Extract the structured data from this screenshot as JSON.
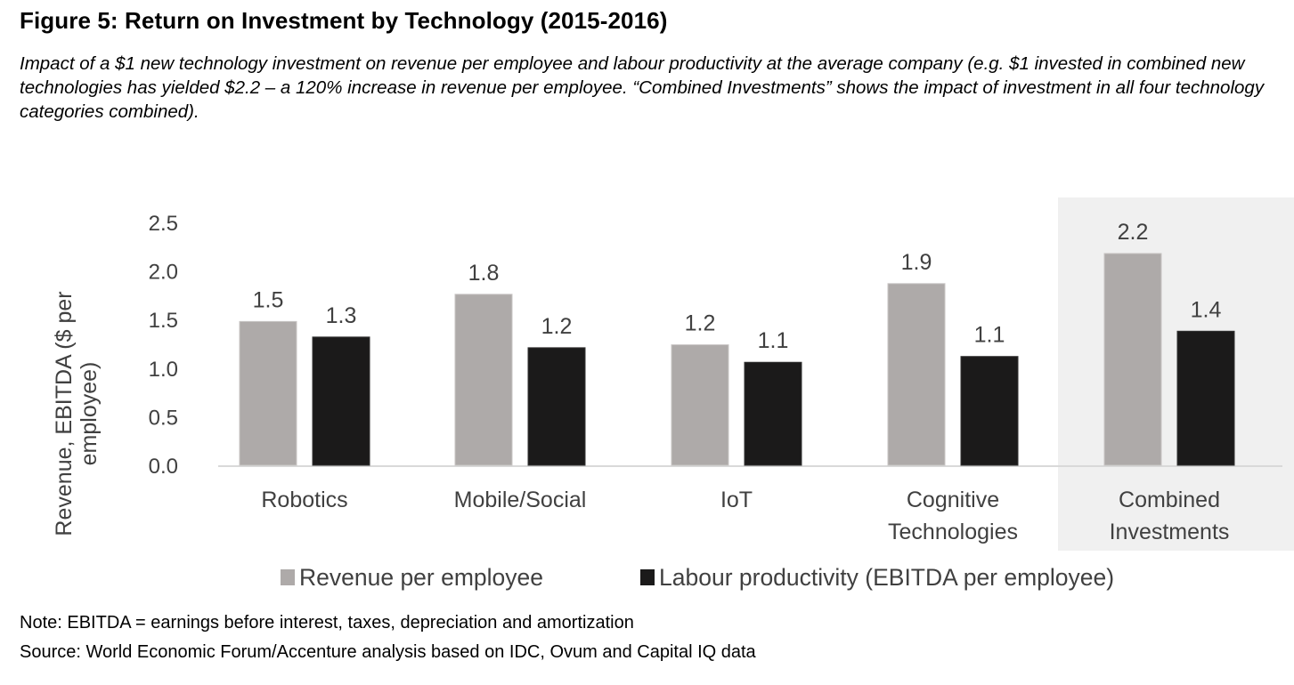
{
  "header": {
    "title": "Figure 5: Return on Investment by Technology (2015-2016)",
    "subtitle": "Impact of a $1 new technology investment on revenue per employee and labour productivity at the average company (e.g. $1 invested in combined new technologies has yielded $2.2 – a 120% increase in revenue per employee. “Combined Investments” shows the impact of investment in all four technology categories combined)."
  },
  "footer": {
    "note": "Note: EBITDA = earnings before interest, taxes, depreciation and amortization",
    "source": "Source: World Economic Forum/Accenture analysis based on IDC, Ovum and Capital IQ data"
  },
  "colors": {
    "revenue": "#aeaaa9",
    "labour": "#1b1a1a",
    "highlight_bg": "#f0f0f0",
    "axis_line": "#d9d9d9",
    "text": "#404040"
  },
  "chart_data": {
    "type": "bar",
    "title": "Figure 5: Return on Investment by Technology (2015-2016)",
    "xlabel": "",
    "ylabel": "Revenue, EBITDA ($ per employee)",
    "ylabel_lines": [
      "Revenue, EBITDA ($ per",
      "employee)"
    ],
    "ylim": [
      0,
      2.5
    ],
    "yticks": [
      0.0,
      0.5,
      1.0,
      1.5,
      2.0,
      2.5
    ],
    "ytick_labels": [
      "0.0",
      "0.5",
      "1.0",
      "1.5",
      "2.0",
      "2.5"
    ],
    "grid": false,
    "legend_position": "bottom",
    "categories": [
      "Robotics",
      "Mobile/Social",
      "IoT",
      "Cognitive Technologies",
      "Combined Investments"
    ],
    "category_label_lines": [
      [
        "Robotics"
      ],
      [
        "Mobile/Social"
      ],
      [
        "IoT"
      ],
      [
        "Cognitive",
        "Technologies"
      ],
      [
        "Combined",
        "Investments"
      ]
    ],
    "highlighted_category": "Combined Investments",
    "series": [
      {
        "name": "Revenue per employee",
        "color_key": "revenue",
        "values": [
          1.48,
          1.76,
          1.24,
          1.87,
          2.18
        ],
        "labels": [
          "1.5",
          "1.8",
          "1.2",
          "1.9",
          "2.2"
        ]
      },
      {
        "name": "Labour productivity (EBITDA per employee)",
        "color_key": "labour",
        "values": [
          1.32,
          1.21,
          1.06,
          1.12,
          1.38
        ],
        "labels": [
          "1.3",
          "1.2",
          "1.1",
          "1.1",
          "1.4"
        ]
      }
    ]
  }
}
